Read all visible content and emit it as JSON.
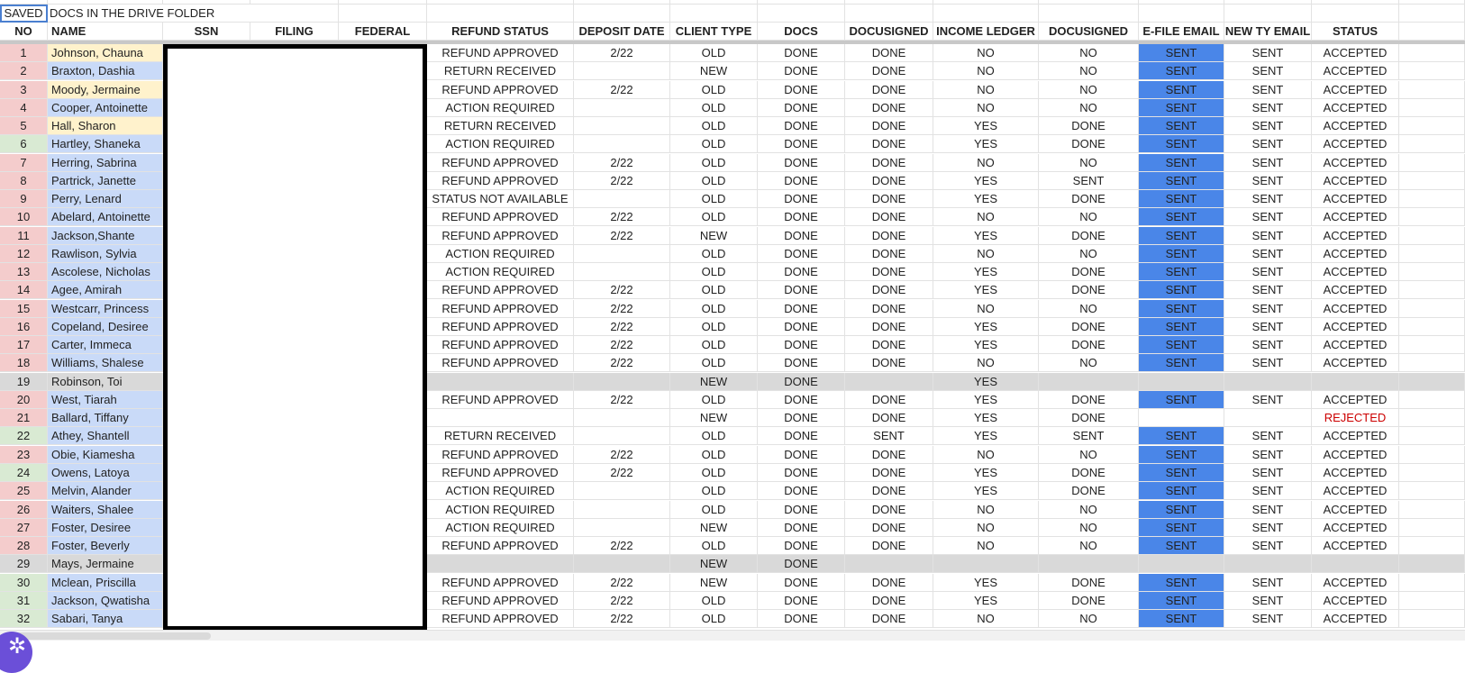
{
  "sheet": {
    "saved_label": "SAVED",
    "banner": "DOCS IN THE DRIVE FOLDER",
    "headers": [
      "NO",
      "NAME",
      "SSN",
      "FILING",
      "FEDERAL",
      "REFUND STATUS",
      "DEPOSIT DATE",
      "CLIENT TYPE",
      "DOCS",
      "DOCUSIGNED",
      "INCOME LEDGER",
      "DOCUSIGNED",
      "E-FILE EMAIL",
      "NEW TY EMAIL",
      "STATUS"
    ],
    "colors": {
      "pink": "#f4cccc",
      "green": "#d9ead3",
      "grey": "#d9d9d9",
      "yellow": "#fff2cc",
      "blue": "#c9daf8",
      "efile_blue": "#4a86e8",
      "rejected_red": "#cc0000"
    },
    "rows": [
      {
        "no": "1",
        "name": "Johnson, Chauna",
        "no_color": "pink",
        "name_color": "yellow",
        "cells": [
          "REFUND APPROVED",
          "2/22",
          "OLD",
          "DONE",
          "DONE",
          "NO",
          "NO",
          "SENT",
          "SENT",
          "ACCEPTED"
        ]
      },
      {
        "no": "2",
        "name": "Braxton, Dashia",
        "no_color": "pink",
        "name_color": "blue",
        "cells": [
          "RETURN RECEIVED",
          "",
          "NEW",
          "DONE",
          "DONE",
          "NO",
          "NO",
          "SENT",
          "SENT",
          "ACCEPTED"
        ]
      },
      {
        "no": "3",
        "name": "Moody, Jermaine",
        "no_color": "pink",
        "name_color": "yellow",
        "cells": [
          "REFUND APPROVED",
          "2/22",
          "OLD",
          "DONE",
          "DONE",
          "NO",
          "NO",
          "SENT",
          "SENT",
          "ACCEPTED"
        ]
      },
      {
        "no": "4",
        "name": "Cooper, Antoinette",
        "no_color": "pink",
        "name_color": "blue",
        "cells": [
          "ACTION REQUIRED",
          "",
          "OLD",
          "DONE",
          "DONE",
          "NO",
          "NO",
          "SENT",
          "SENT",
          "ACCEPTED"
        ]
      },
      {
        "no": "5",
        "name": "Hall, Sharon",
        "no_color": "pink",
        "name_color": "yellow",
        "cells": [
          "RETURN RECEIVED",
          "",
          "OLD",
          "DONE",
          "DONE",
          "YES",
          "DONE",
          "SENT",
          "SENT",
          "ACCEPTED"
        ]
      },
      {
        "no": "6",
        "name": "Hartley, Shaneka",
        "no_color": "green",
        "name_color": "blue",
        "cells": [
          "ACTION REQUIRED",
          "",
          "OLD",
          "DONE",
          "DONE",
          "YES",
          "DONE",
          "SENT",
          "SENT",
          "ACCEPTED"
        ]
      },
      {
        "no": "7",
        "name": "Herring, Sabrina",
        "no_color": "pink",
        "name_color": "blue",
        "cells": [
          "REFUND APPROVED",
          "2/22",
          "OLD",
          "DONE",
          "DONE",
          "NO",
          "NO",
          "SENT",
          "SENT",
          "ACCEPTED"
        ]
      },
      {
        "no": "8",
        "name": "Partrick, Janette",
        "no_color": "pink",
        "name_color": "blue",
        "cells": [
          "REFUND APPROVED",
          "2/22",
          "OLD",
          "DONE",
          "DONE",
          "YES",
          "SENT",
          "SENT",
          "SENT",
          "ACCEPTED"
        ]
      },
      {
        "no": "9",
        "name": "Perry, Lenard",
        "no_color": "pink",
        "name_color": "blue",
        "cells": [
          "STATUS NOT AVAILABLE",
          "",
          "OLD",
          "DONE",
          "DONE",
          "YES",
          "DONE",
          "SENT",
          "SENT",
          "ACCEPTED"
        ]
      },
      {
        "no": "10",
        "name": "Abelard, Antoinette",
        "no_color": "pink",
        "name_color": "blue",
        "cells": [
          "REFUND APPROVED",
          "2/22",
          "OLD",
          "DONE",
          "DONE",
          "NO",
          "NO",
          "SENT",
          "SENT",
          "ACCEPTED"
        ]
      },
      {
        "no": "11",
        "name": "Jackson,Shante",
        "no_color": "pink",
        "name_color": "blue",
        "cells": [
          "REFUND APPROVED",
          "2/22",
          "NEW",
          "DONE",
          "DONE",
          "YES",
          "DONE",
          "SENT",
          "SENT",
          "ACCEPTED"
        ]
      },
      {
        "no": "12",
        "name": "Rawlison, Sylvia",
        "no_color": "pink",
        "name_color": "blue",
        "cells": [
          "ACTION REQUIRED",
          "",
          "OLD",
          "DONE",
          "DONE",
          "NO",
          "NO",
          "SENT",
          "SENT",
          "ACCEPTED"
        ]
      },
      {
        "no": "13",
        "name": "Ascolese, Nicholas",
        "no_color": "pink",
        "name_color": "blue",
        "cells": [
          "ACTION REQUIRED",
          "",
          "OLD",
          "DONE",
          "DONE",
          "YES",
          "DONE",
          "SENT",
          "SENT",
          "ACCEPTED"
        ]
      },
      {
        "no": "14",
        "name": "Agee, Amirah",
        "no_color": "pink",
        "name_color": "blue",
        "cells": [
          "REFUND APPROVED",
          "2/22",
          "OLD",
          "DONE",
          "DONE",
          "YES",
          "DONE",
          "SENT",
          "SENT",
          "ACCEPTED"
        ]
      },
      {
        "no": "15",
        "name": "Westcarr, Princess",
        "no_color": "pink",
        "name_color": "blue",
        "cells": [
          "REFUND APPROVED",
          "2/22",
          "OLD",
          "DONE",
          "DONE",
          "NO",
          "NO",
          "SENT",
          "SENT",
          "ACCEPTED"
        ]
      },
      {
        "no": "16",
        "name": "Copeland, Desiree",
        "no_color": "pink",
        "name_color": "blue",
        "cells": [
          "REFUND APPROVED",
          "2/22",
          "OLD",
          "DONE",
          "DONE",
          "YES",
          "DONE",
          "SENT",
          "SENT",
          "ACCEPTED"
        ]
      },
      {
        "no": "17",
        "name": "Carter, Immeca",
        "no_color": "pink",
        "name_color": "blue",
        "cells": [
          "REFUND APPROVED",
          "2/22",
          "OLD",
          "DONE",
          "DONE",
          "YES",
          "DONE",
          "SENT",
          "SENT",
          "ACCEPTED"
        ]
      },
      {
        "no": "18",
        "name": "Williams, Shalese",
        "no_color": "pink",
        "name_color": "blue",
        "cells": [
          "REFUND APPROVED",
          "2/22",
          "OLD",
          "DONE",
          "DONE",
          "NO",
          "NO",
          "SENT",
          "SENT",
          "ACCEPTED"
        ]
      },
      {
        "no": "19",
        "name": "Robinson, Toi",
        "no_color": "grey",
        "name_color": "grey",
        "row_color": "grey",
        "cells": [
          "",
          "",
          "NEW",
          "DONE",
          "",
          "YES",
          "",
          "",
          "",
          ""
        ]
      },
      {
        "no": "20",
        "name": "West, Tiarah",
        "no_color": "pink",
        "name_color": "blue",
        "cells": [
          "REFUND APPROVED",
          "2/22",
          "OLD",
          "DONE",
          "DONE",
          "YES",
          "DONE",
          "SENT",
          "SENT",
          "ACCEPTED"
        ]
      },
      {
        "no": "21",
        "name": "Ballard, Tiffany",
        "no_color": "pink",
        "name_color": "blue",
        "cells": [
          "",
          "",
          "NEW",
          "DONE",
          "DONE",
          "YES",
          "DONE",
          "",
          "",
          "REJECTED"
        ]
      },
      {
        "no": "22",
        "name": "Athey, Shantell",
        "no_color": "green",
        "name_color": "blue",
        "cells": [
          "RETURN RECEIVED",
          "",
          "OLD",
          "DONE",
          "SENT",
          "YES",
          "SENT",
          "SENT",
          "SENT",
          "ACCEPTED"
        ]
      },
      {
        "no": "23",
        "name": "Obie, Kiamesha",
        "no_color": "pink",
        "name_color": "blue",
        "cells": [
          "REFUND APPROVED",
          "2/22",
          "OLD",
          "DONE",
          "DONE",
          "NO",
          "NO",
          "SENT",
          "SENT",
          "ACCEPTED"
        ]
      },
      {
        "no": "24",
        "name": "Owens, Latoya",
        "no_color": "green",
        "name_color": "blue",
        "cells": [
          "REFUND APPROVED",
          "2/22",
          "OLD",
          "DONE",
          "DONE",
          "YES",
          "DONE",
          "SENT",
          "SENT",
          "ACCEPTED"
        ]
      },
      {
        "no": "25",
        "name": "Melvin, Alander",
        "no_color": "pink",
        "name_color": "blue",
        "cells": [
          "ACTION REQUIRED",
          "",
          "OLD",
          "DONE",
          "DONE",
          "YES",
          "DONE",
          "SENT",
          "SENT",
          "ACCEPTED"
        ]
      },
      {
        "no": "26",
        "name": "Waiters, Shalee",
        "no_color": "pink",
        "name_color": "blue",
        "cells": [
          "ACTION REQUIRED",
          "",
          "OLD",
          "DONE",
          "DONE",
          "NO",
          "NO",
          "SENT",
          "SENT",
          "ACCEPTED"
        ]
      },
      {
        "no": "27",
        "name": "Foster, Desiree",
        "no_color": "pink",
        "name_color": "blue",
        "cells": [
          "ACTION REQUIRED",
          "",
          "NEW",
          "DONE",
          "DONE",
          "NO",
          "NO",
          "SENT",
          "SENT",
          "ACCEPTED"
        ]
      },
      {
        "no": "28",
        "name": "Foster, Beverly",
        "no_color": "pink",
        "name_color": "blue",
        "cells": [
          "REFUND APPROVED",
          "2/22",
          "OLD",
          "DONE",
          "DONE",
          "NO",
          "NO",
          "SENT",
          "SENT",
          "ACCEPTED"
        ]
      },
      {
        "no": "29",
        "name": "Mays, Jermaine",
        "no_color": "grey",
        "name_color": "grey",
        "row_color": "grey",
        "cells": [
          "",
          "",
          "NEW",
          "DONE",
          "",
          "",
          "",
          "",
          "",
          ""
        ]
      },
      {
        "no": "30",
        "name": "Mclean, Priscilla",
        "no_color": "green",
        "name_color": "blue",
        "cells": [
          "REFUND APPROVED",
          "2/22",
          "NEW",
          "DONE",
          "DONE",
          "YES",
          "DONE",
          "SENT",
          "SENT",
          "ACCEPTED"
        ]
      },
      {
        "no": "31",
        "name": "Jackson, Qwatisha",
        "no_color": "green",
        "name_color": "blue",
        "cells": [
          "REFUND APPROVED",
          "2/22",
          "OLD",
          "DONE",
          "DONE",
          "YES",
          "DONE",
          "SENT",
          "SENT",
          "ACCEPTED"
        ]
      },
      {
        "no": "32",
        "name": "Sabari, Tanya",
        "no_color": "green",
        "name_color": "blue",
        "cells": [
          "REFUND APPROVED",
          "2/22",
          "OLD",
          "DONE",
          "DONE",
          "NO",
          "NO",
          "SENT",
          "SENT",
          "ACCEPTED"
        ]
      }
    ]
  },
  "fab": {
    "icon": "snowflake-icon",
    "glyph": "✲"
  }
}
